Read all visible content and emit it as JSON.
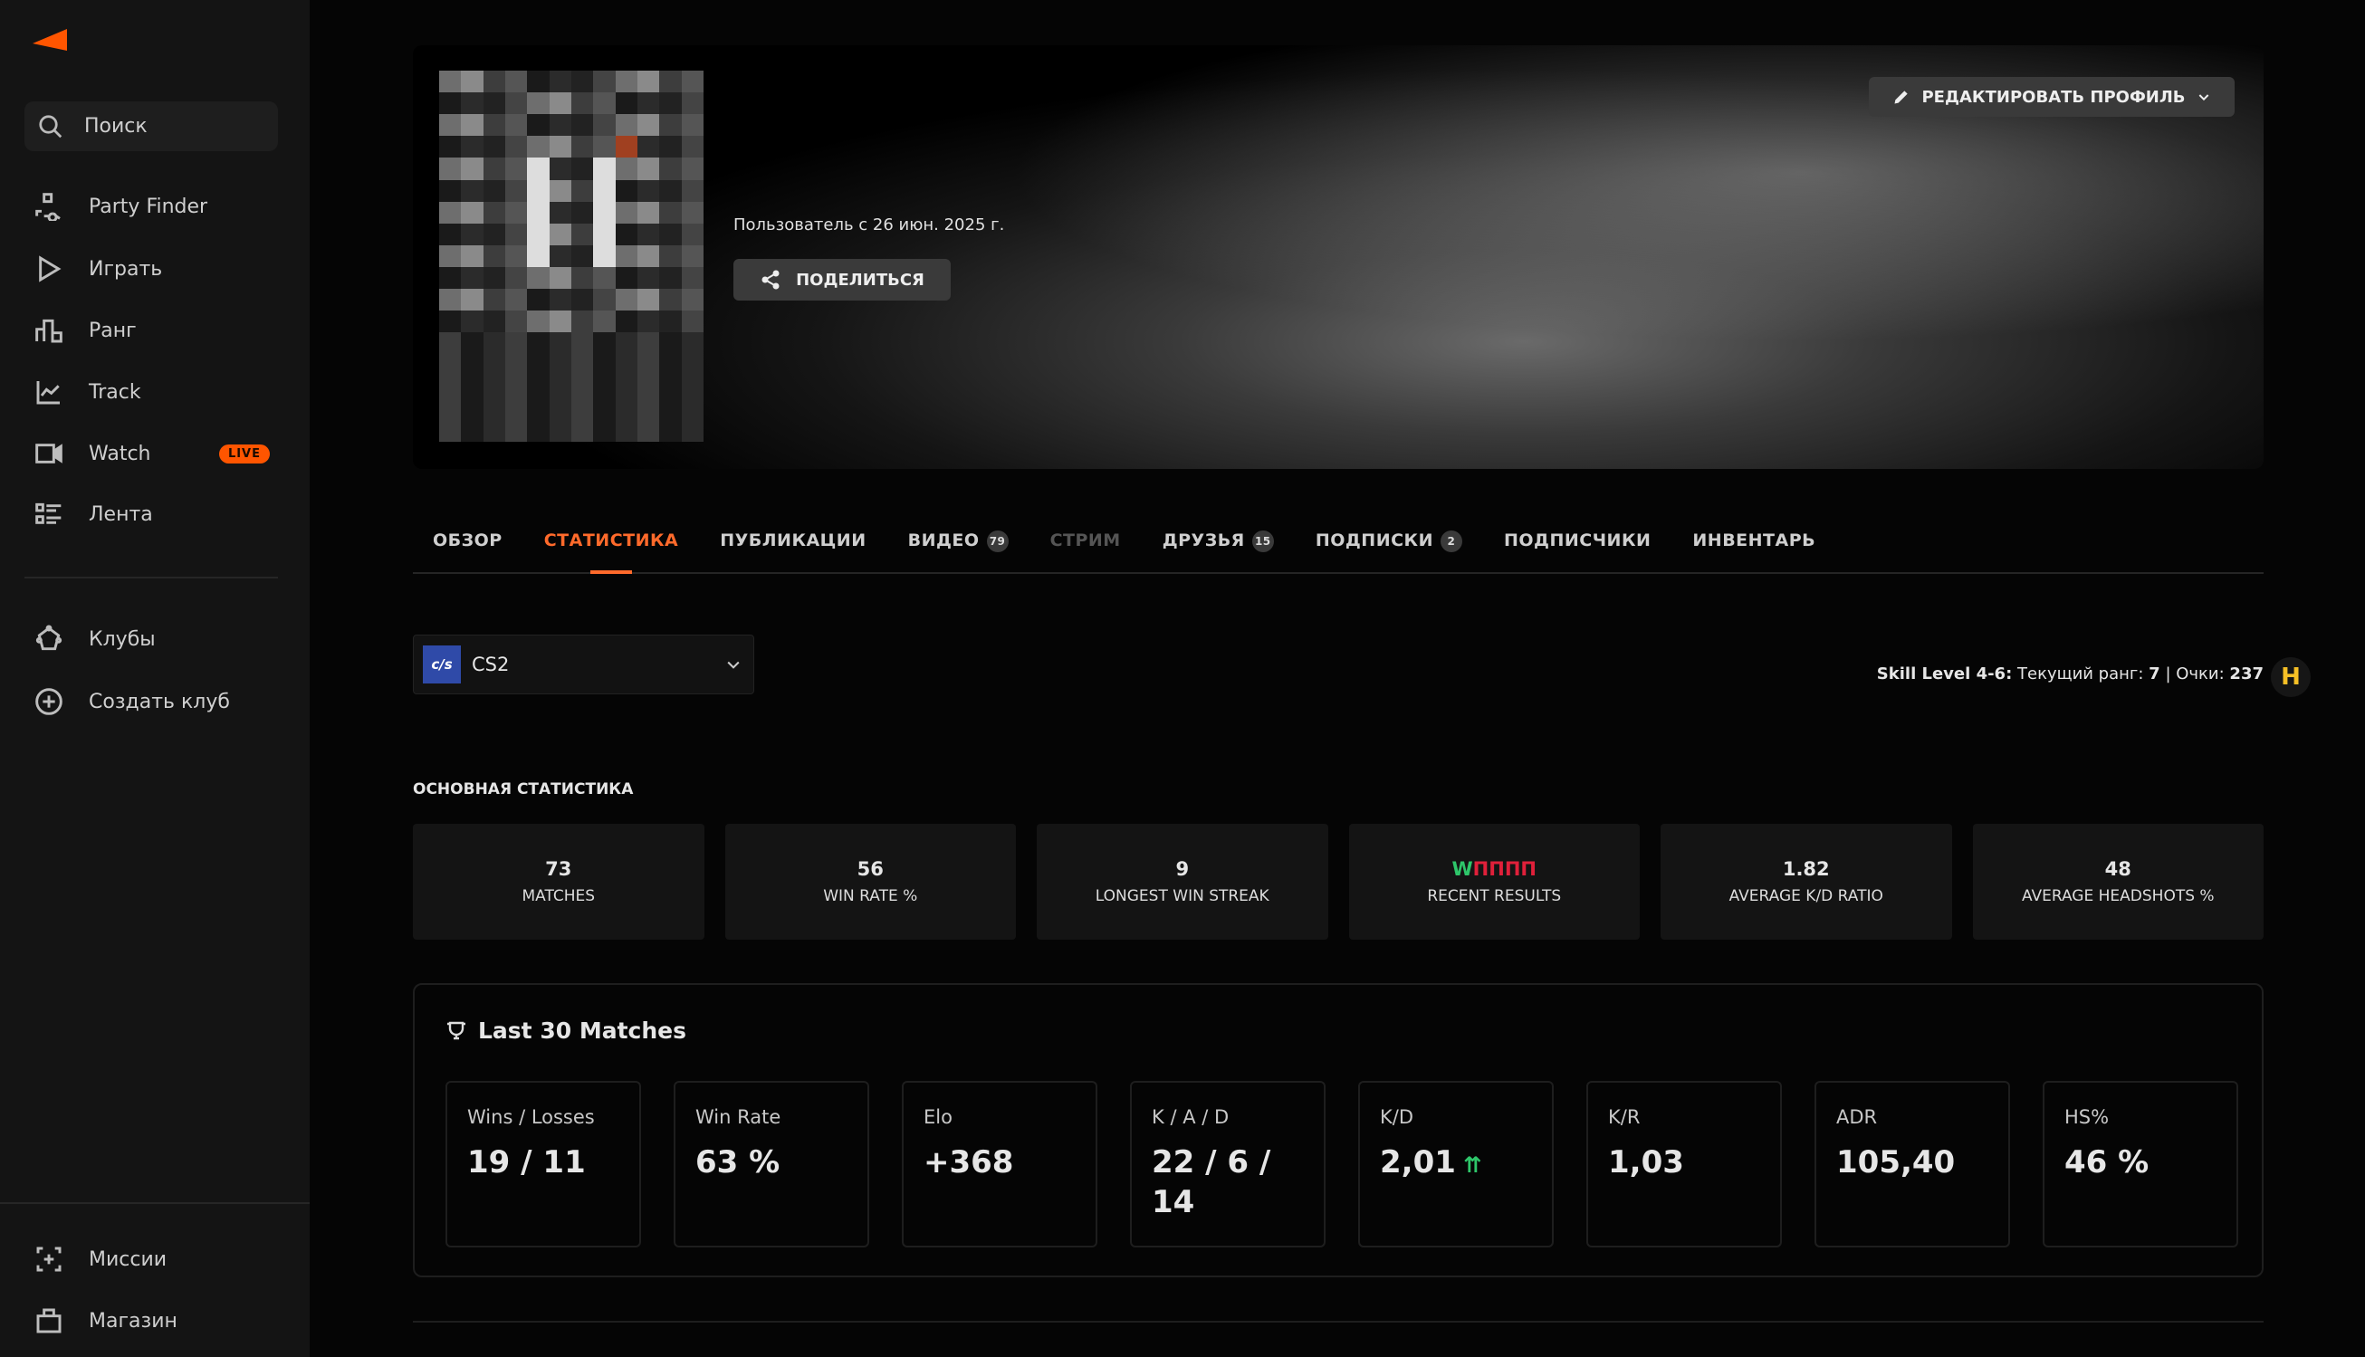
{
  "sidebar": {
    "search": "Поиск",
    "items": [
      {
        "label": "Party Finder",
        "icon": "party-finder-icon"
      },
      {
        "label": "Играть",
        "icon": "play-icon"
      },
      {
        "label": "Ранг",
        "icon": "rank-icon"
      },
      {
        "label": "Track",
        "icon": "track-icon"
      },
      {
        "label": "Watch",
        "icon": "video-camera-icon",
        "badge": "LIVE"
      },
      {
        "label": "Лента",
        "icon": "feed-icon"
      }
    ],
    "clubs": [
      {
        "label": "Клубы",
        "icon": "clubs-icon"
      },
      {
        "label": "Создать клуб",
        "icon": "plus-circle-icon"
      }
    ],
    "bottom": [
      {
        "label": "Миссии",
        "icon": "missions-icon"
      },
      {
        "label": "Магазин",
        "icon": "shop-icon"
      }
    ]
  },
  "profile": {
    "member_since": "Пользователь с 26 июн. 2025 г.",
    "share": "ПОДЕЛИТЬСЯ",
    "edit": "РЕДАКТИРОВАТЬ ПРОФИЛЬ"
  },
  "tabs": [
    {
      "label": "ОБЗОР"
    },
    {
      "label": "СТАТИСТИКА",
      "active": true
    },
    {
      "label": "ПУБЛИКАЦИИ"
    },
    {
      "label": "ВИДЕО",
      "badge": "79"
    },
    {
      "label": "СТРИМ",
      "disabled": true
    },
    {
      "label": "ДРУЗЬЯ",
      "badge": "15"
    },
    {
      "label": "ПОДПИСКИ",
      "badge": "2"
    },
    {
      "label": "ПОДПИСЧИКИ"
    },
    {
      "label": "ИНВЕНТАРЬ"
    }
  ],
  "game": {
    "logo": "c/s",
    "name": "CS2"
  },
  "skill": {
    "label": "Skill Level 4-6:",
    "rank_label": "Текущий ранг:",
    "rank": "7",
    "sep": "|",
    "points_label": "Очки:",
    "points": "237",
    "icon": "H"
  },
  "main_stats": {
    "title": "ОСНОВНАЯ СТАТИСТИКА",
    "items": [
      {
        "value": "73",
        "label": "MATCHES"
      },
      {
        "value": "56",
        "label": "WIN RATE %"
      },
      {
        "value": "9",
        "label": "LONGEST WIN STREAK"
      },
      {
        "results": [
          "W",
          "П",
          "П",
          "П",
          "П"
        ],
        "label": "RECENT RESULTS"
      },
      {
        "value": "1.82",
        "label": "AVERAGE K/D RATIO"
      },
      {
        "value": "48",
        "label": "AVERAGE HEADSHOTS %"
      }
    ]
  },
  "last30": {
    "title": "Last 30 Matches",
    "cards": [
      {
        "label": "Wins / Losses",
        "value": "19 / 11"
      },
      {
        "label": "Win Rate",
        "value": "63 %"
      },
      {
        "label": "Elo",
        "value": "+368"
      },
      {
        "label": "K / A / D",
        "value": "22 / 6 / 14"
      },
      {
        "label": "K/D",
        "value": "2,01",
        "trend": "up"
      },
      {
        "label": "K/R",
        "value": "1,03"
      },
      {
        "label": "ADR",
        "value": "105,40"
      },
      {
        "label": "HS%",
        "value": "46 %"
      }
    ]
  },
  "colors": {
    "accent": "#ff6a2b",
    "win": "#2ec66a",
    "loss": "#e0203a",
    "skill": "#f6c026"
  }
}
